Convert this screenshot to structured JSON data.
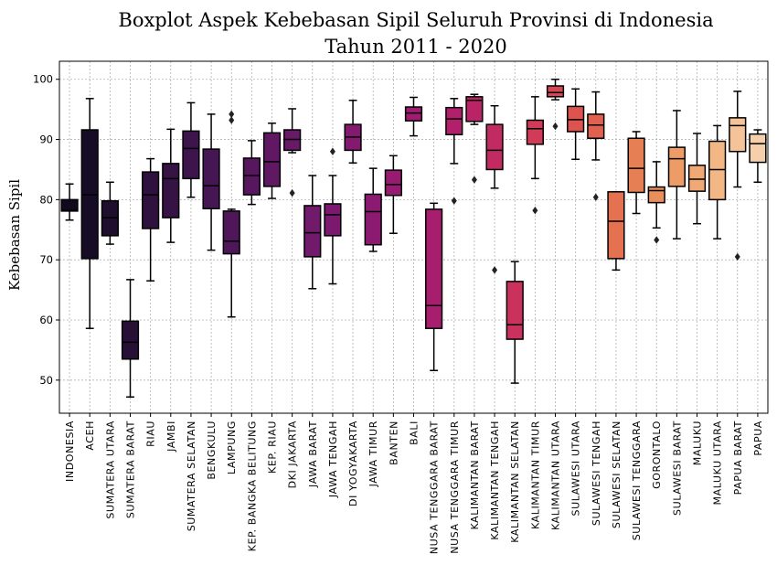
{
  "chart_data": {
    "type": "boxplot",
    "title": "Boxplot Aspek Kebebasan Sipil Seluruh Provinsi di Indonesia",
    "subtitle": "Tahun 2011 - 2020",
    "xlabel": "",
    "ylabel": "Kebebasan Sipil",
    "ylim": [
      44.5,
      103
    ],
    "yticks": [
      50,
      60,
      70,
      80,
      90,
      100
    ],
    "grid": true,
    "categories": [
      "INDONESIA",
      "ACEH",
      "SUMATERA UTARA",
      "SUMATERA BARAT",
      "RIAU",
      "JAMBI",
      "SUMATERA SELATAN",
      "BENGKULU",
      "LAMPUNG",
      "KEP. BANGKA BELITUNG",
      "KEP. RIAU",
      "DKI JAKARTA",
      "JAWA BARAT",
      "JAWA TENGAH",
      "DI YOGYAKARTA",
      "JAWA TIMUR",
      "BANTEN",
      "BALI",
      "NUSA TENGGARA BARAT",
      "NUSA TENGGARA TIMUR",
      "KALIMANTAN BARAT",
      "KALIMANTAN TENGAH",
      "KALIMANTAN SELATAN",
      "KALIMANTAN TIMUR",
      "KALIMANTAN UTARA",
      "SULAWESI UTARA",
      "SULAWESI TENGAH",
      "SULAWESI SELATAN",
      "SULAWESI TENGGARA",
      "GORONTALO",
      "SULAWESI BARAT",
      "MALUKU",
      "MALUKU UTARA",
      "PAPUA BARAT",
      "PAPUA"
    ],
    "boxes": [
      {
        "min": 76.6,
        "q1": 78.1,
        "median": 78.2,
        "q3": 80.0,
        "max": 82.6,
        "outliers": []
      },
      {
        "min": 58.6,
        "q1": 70.2,
        "median": 80.8,
        "q3": 91.6,
        "max": 96.8,
        "outliers": []
      },
      {
        "min": 72.6,
        "q1": 74.0,
        "median": 77.0,
        "q3": 79.8,
        "max": 82.9,
        "outliers": []
      },
      {
        "min": 47.2,
        "q1": 53.5,
        "median": 56.3,
        "q3": 59.8,
        "max": 66.7,
        "outliers": []
      },
      {
        "min": 66.5,
        "q1": 75.2,
        "median": 80.8,
        "q3": 84.6,
        "max": 86.8,
        "outliers": []
      },
      {
        "min": 72.9,
        "q1": 77.0,
        "median": 83.5,
        "q3": 86.0,
        "max": 91.7,
        "outliers": []
      },
      {
        "min": 80.4,
        "q1": 83.5,
        "median": 88.5,
        "q3": 91.4,
        "max": 96.1,
        "outliers": []
      },
      {
        "min": 71.6,
        "q1": 78.5,
        "median": 82.3,
        "q3": 88.4,
        "max": 94.2,
        "outliers": []
      },
      {
        "min": 60.5,
        "q1": 71.0,
        "median": 73.1,
        "q3": 78.1,
        "max": 78.4,
        "outliers": [
          93.2,
          94.2
        ]
      },
      {
        "min": 79.2,
        "q1": 80.8,
        "median": 84.0,
        "q3": 86.9,
        "max": 89.8,
        "outliers": []
      },
      {
        "min": 80.2,
        "q1": 82.2,
        "median": 86.3,
        "q3": 91.1,
        "max": 92.7,
        "outliers": []
      },
      {
        "min": 87.8,
        "q1": 88.2,
        "median": 90.0,
        "q3": 91.6,
        "max": 95.1,
        "outliers": [
          81.1
        ]
      },
      {
        "min": 65.2,
        "q1": 70.5,
        "median": 74.5,
        "q3": 79.0,
        "max": 84.0,
        "outliers": []
      },
      {
        "min": 66.0,
        "q1": 74.0,
        "median": 77.5,
        "q3": 79.3,
        "max": 84.0,
        "outliers": [
          88.0
        ]
      },
      {
        "min": 86.1,
        "q1": 88.2,
        "median": 90.4,
        "q3": 92.5,
        "max": 96.5,
        "outliers": []
      },
      {
        "min": 71.4,
        "q1": 72.5,
        "median": 78.0,
        "q3": 80.9,
        "max": 85.2,
        "outliers": []
      },
      {
        "min": 74.4,
        "q1": 80.7,
        "median": 82.5,
        "q3": 84.9,
        "max": 87.3,
        "outliers": []
      },
      {
        "min": 90.6,
        "q1": 93.1,
        "median": 94.4,
        "q3": 95.4,
        "max": 97.0,
        "outliers": []
      },
      {
        "min": 51.6,
        "q1": 58.6,
        "median": 62.4,
        "q3": 78.4,
        "max": 79.4,
        "outliers": []
      },
      {
        "min": 86.0,
        "q1": 90.8,
        "median": 93.4,
        "q3": 95.3,
        "max": 96.8,
        "outliers": [
          79.8
        ]
      },
      {
        "min": 92.5,
        "q1": 93.0,
        "median": 96.5,
        "q3": 97.1,
        "max": 97.5,
        "outliers": [
          83.3
        ]
      },
      {
        "min": 81.9,
        "q1": 85.0,
        "median": 88.2,
        "q3": 92.5,
        "max": 95.6,
        "outliers": [
          68.3
        ]
      },
      {
        "min": 49.5,
        "q1": 56.8,
        "median": 59.2,
        "q3": 66.4,
        "max": 69.7,
        "outliers": []
      },
      {
        "min": 83.5,
        "q1": 89.2,
        "median": 91.8,
        "q3": 93.2,
        "max": 97.1,
        "outliers": [
          78.2
        ]
      },
      {
        "min": 96.6,
        "q1": 97.1,
        "median": 97.8,
        "q3": 98.9,
        "max": 100.0,
        "outliers": [
          92.2
        ]
      },
      {
        "min": 86.7,
        "q1": 91.3,
        "median": 93.3,
        "q3": 95.5,
        "max": 98.4,
        "outliers": []
      },
      {
        "min": 86.6,
        "q1": 90.2,
        "median": 92.4,
        "q3": 94.2,
        "max": 97.9,
        "outliers": [
          80.4
        ]
      },
      {
        "min": 68.3,
        "q1": 70.2,
        "median": 76.4,
        "q3": 81.3,
        "max": 81.3,
        "outliers": []
      },
      {
        "min": 77.7,
        "q1": 81.2,
        "median": 85.2,
        "q3": 90.2,
        "max": 91.3,
        "outliers": []
      },
      {
        "min": 75.3,
        "q1": 79.5,
        "median": 81.5,
        "q3": 82.1,
        "max": 86.3,
        "outliers": [
          73.3
        ]
      },
      {
        "min": 73.5,
        "q1": 82.2,
        "median": 86.8,
        "q3": 88.7,
        "max": 94.8,
        "outliers": []
      },
      {
        "min": 76.0,
        "q1": 81.4,
        "median": 83.4,
        "q3": 85.7,
        "max": 91.0,
        "outliers": []
      },
      {
        "min": 73.5,
        "q1": 80.0,
        "median": 85.0,
        "q3": 89.7,
        "max": 92.3,
        "outliers": []
      },
      {
        "min": 82.1,
        "q1": 88.0,
        "median": 92.3,
        "q3": 93.6,
        "max": 98.0,
        "outliers": [
          70.5
        ]
      },
      {
        "min": 82.9,
        "q1": 86.2,
        "median": 89.3,
        "q3": 90.9,
        "max": 91.6,
        "outliers": []
      }
    ],
    "colors": [
      "#11091e",
      "#170c25",
      "#1f0e2e",
      "#271036",
      "#2e113e",
      "#361345",
      "#3e144d",
      "#461553",
      "#4f1659",
      "#57175e",
      "#601863",
      "#681967",
      "#71196b",
      "#7a196e",
      "#841a70",
      "#8d1a71",
      "#961b71",
      "#9f1c70",
      "#a81e6e",
      "#b2206b",
      "#ba2467",
      "#c22a62",
      "#ca325d",
      "#d13b58",
      "#d64653",
      "#dc5350",
      "#e0614f",
      "#e4714f",
      "#e77f54",
      "#ea8e5c",
      "#ed9b67",
      "#f0a974",
      "#f2b784",
      "#f4c397",
      "#f6d0ab"
    ]
  }
}
